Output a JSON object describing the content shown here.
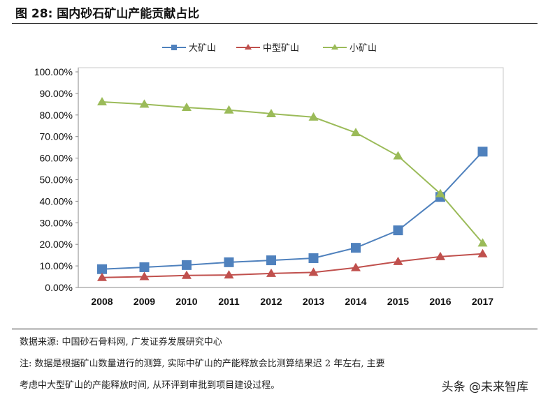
{
  "header": {
    "title": "图 28: 国内砂石矿山产能贡献占比"
  },
  "footer": {
    "source": "数据来源: 中国砂石骨料网, 广发证券发展研究中心",
    "note_line1": "注: 数据是根据矿山数量进行的测算, 实际中矿山的产能释放会比测算结果迟 2 年左右, 主要",
    "note_line2": "考虑中大型矿山的产能释放时间, 从环评到审批到项目建设过程。",
    "watermark": "头条 @未来智库"
  },
  "chart_data": {
    "type": "line",
    "title": "",
    "xlabel": "",
    "ylabel": "",
    "categories": [
      "2008",
      "2009",
      "2010",
      "2011",
      "2012",
      "2013",
      "2014",
      "2015",
      "2016",
      "2017"
    ],
    "ylim": [
      0,
      100
    ],
    "yticks": [
      "0.00%",
      "10.00%",
      "20.00%",
      "30.00%",
      "40.00%",
      "50.00%",
      "60.00%",
      "70.00%",
      "80.00%",
      "90.00%",
      "100.00%"
    ],
    "grid": false,
    "legend_position": "top",
    "series": [
      {
        "name": "大矿山",
        "color": "#4F81BD",
        "marker": "square",
        "values": [
          8.5,
          9.4,
          10.4,
          11.7,
          12.6,
          13.6,
          18.4,
          26.5,
          42.0,
          63.0
        ]
      },
      {
        "name": "中型矿山",
        "color": "#C0504D",
        "marker": "triangle",
        "values": [
          4.6,
          5.0,
          5.6,
          5.8,
          6.5,
          7.0,
          9.2,
          12.0,
          14.3,
          15.6
        ]
      },
      {
        "name": "小矿山",
        "color": "#9BBB59",
        "marker": "triangle",
        "values": [
          86.1,
          85.0,
          83.5,
          82.3,
          80.6,
          79.0,
          71.8,
          61.0,
          43.5,
          20.6
        ]
      }
    ]
  }
}
